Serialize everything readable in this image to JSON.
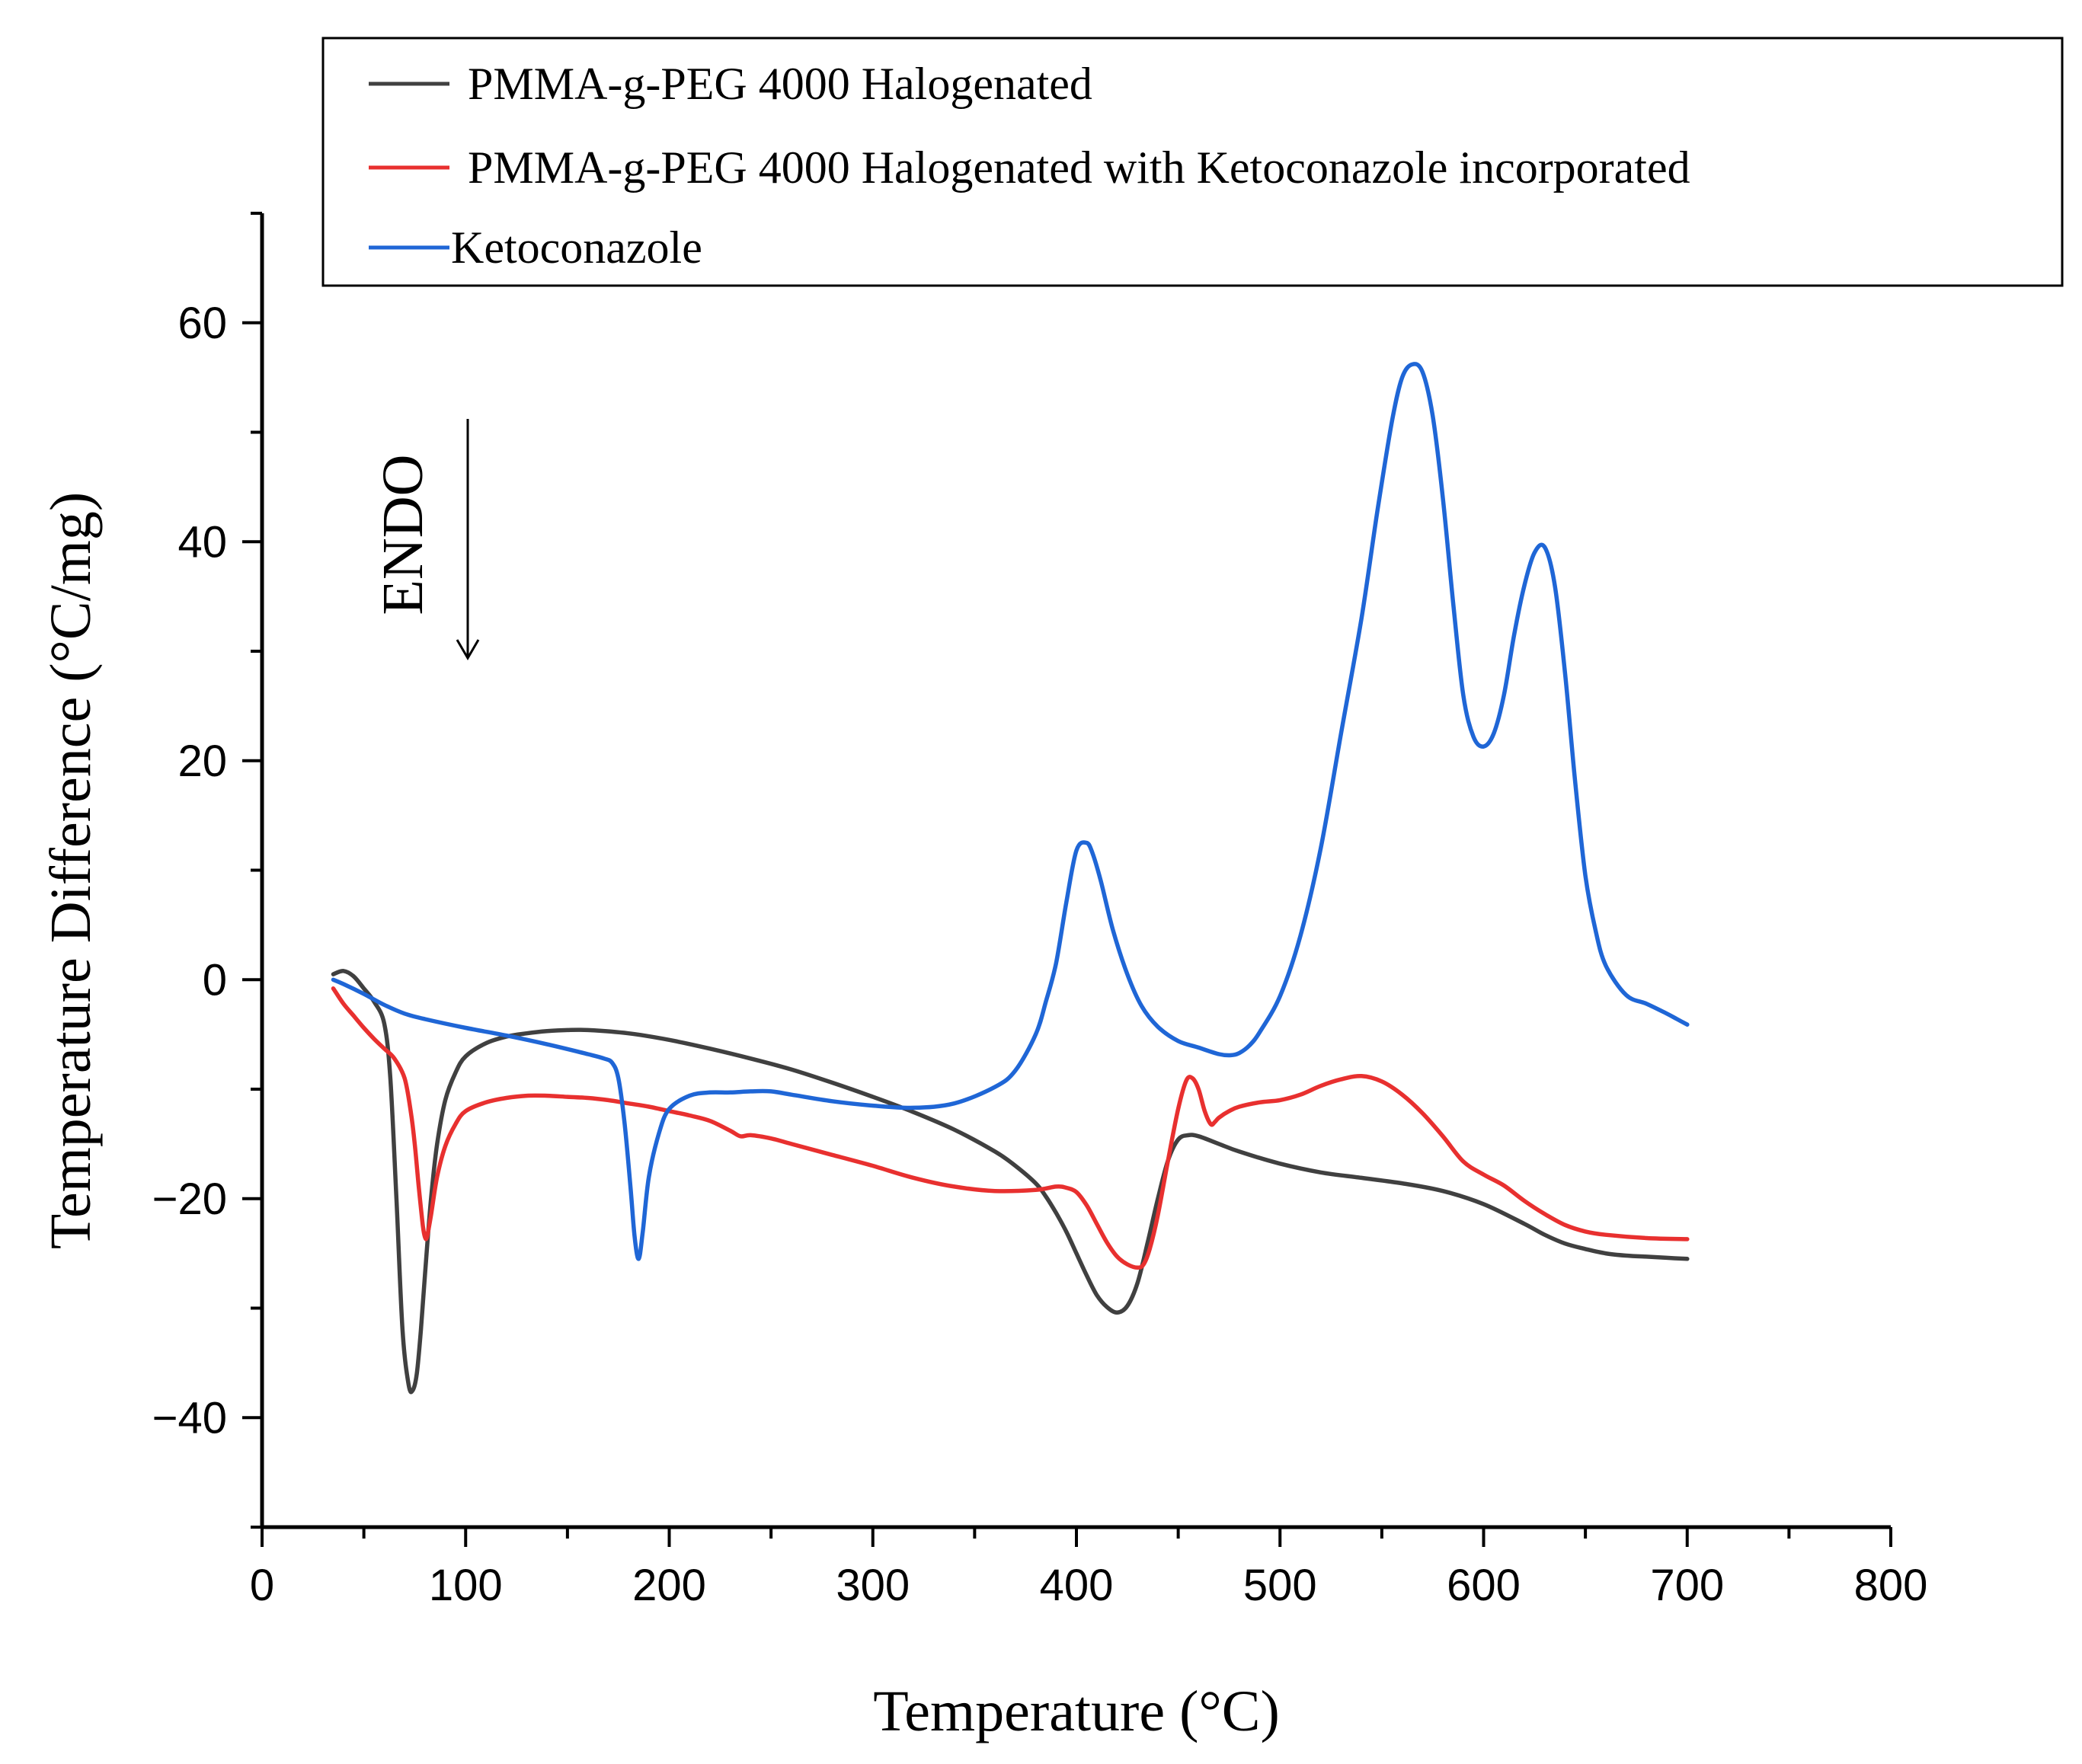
{
  "chart_data": {
    "type": "line",
    "title": "",
    "xlabel": "Temperature (°C)",
    "ylabel": "Temperature Difference (°C/mg)",
    "xlim": [
      0,
      800
    ],
    "ylim": [
      -50,
      70
    ],
    "xticks": [
      0,
      100,
      200,
      300,
      400,
      500,
      600,
      700,
      800
    ],
    "yticks": [
      -40,
      -20,
      0,
      20,
      40,
      60
    ],
    "legend_position": "top",
    "annotation": {
      "text": "ENDO",
      "arrow": "down"
    },
    "series": [
      {
        "name": "PMMA-g-PEG 4000 Halogenated",
        "color": "#404040",
        "x": [
          35,
          40,
          45,
          50,
          55,
          60,
          63,
          66,
          69,
          72,
          74,
          76,
          78,
          80,
          83,
          86,
          90,
          95,
          100,
          110,
          120,
          130,
          140,
          150,
          160,
          180,
          200,
          220,
          240,
          260,
          280,
          300,
          320,
          340,
          360,
          370,
          380,
          385,
          390,
          395,
          400,
          405,
          410,
          415,
          420,
          425,
          430,
          435,
          440,
          445,
          450,
          455,
          460,
          470,
          480,
          500,
          520,
          540,
          560,
          580,
          600,
          620,
          630,
          640,
          650,
          660,
          670,
          680,
          690,
          700
        ],
        "y": [
          0.5,
          0.8,
          0.3,
          -0.8,
          -2,
          -4,
          -9,
          -20,
          -32,
          -37,
          -37.5,
          -36,
          -32,
          -27,
          -20,
          -15,
          -11,
          -8.5,
          -7,
          -5.8,
          -5.2,
          -4.9,
          -4.7,
          -4.6,
          -4.6,
          -4.9,
          -5.5,
          -6.3,
          -7.2,
          -8.2,
          -9.4,
          -10.7,
          -12.1,
          -13.7,
          -15.7,
          -17,
          -18.6,
          -19.8,
          -21.3,
          -23,
          -25,
          -27,
          -28.8,
          -29.9,
          -30.4,
          -29.8,
          -27.7,
          -24,
          -20,
          -16.5,
          -14.6,
          -14.2,
          -14.3,
          -15,
          -15.7,
          -16.8,
          -17.6,
          -18.1,
          -18.6,
          -19.3,
          -20.5,
          -22.3,
          -23.3,
          -24.1,
          -24.6,
          -25,
          -25.2,
          -25.3,
          -25.4,
          -25.5
        ]
      },
      {
        "name": "PMMA-g-PEG 4000 Halogenated with Ketoconazole incorporated",
        "color": "#e8302f",
        "x": [
          35,
          40,
          45,
          50,
          55,
          60,
          65,
          70,
          73,
          75,
          77,
          79,
          80,
          81,
          83,
          86,
          90,
          95,
          100,
          110,
          120,
          130,
          140,
          150,
          160,
          170,
          180,
          190,
          200,
          210,
          220,
          230,
          235,
          240,
          250,
          260,
          280,
          300,
          320,
          340,
          360,
          380,
          390,
          395,
          400,
          405,
          410,
          415,
          420,
          425,
          430,
          433,
          436,
          440,
          445,
          450,
          454,
          457,
          460,
          463,
          466,
          468,
          470,
          475,
          480,
          490,
          500,
          510,
          520,
          530,
          540,
          550,
          560,
          570,
          580,
          590,
          600,
          610,
          620,
          630,
          640,
          650,
          660,
          680,
          700
        ],
        "y": [
          -0.8,
          -2.2,
          -3.3,
          -4.4,
          -5.4,
          -6.3,
          -7.2,
          -9,
          -12,
          -15,
          -19,
          -22.5,
          -23.5,
          -23.5,
          -21.5,
          -18,
          -15.2,
          -13.2,
          -12,
          -11.2,
          -10.8,
          -10.6,
          -10.6,
          -10.7,
          -10.8,
          -11,
          -11.3,
          -11.6,
          -12,
          -12.4,
          -12.9,
          -13.8,
          -14.3,
          -14.2,
          -14.5,
          -15,
          -16,
          -17,
          -18.1,
          -18.9,
          -19.3,
          -19.2,
          -18.9,
          -19,
          -19.4,
          -20.6,
          -22.3,
          -24,
          -25.3,
          -26,
          -26.3,
          -26,
          -24.6,
          -21.5,
          -16.5,
          -11.8,
          -9.2,
          -9,
          -10,
          -12,
          -13.2,
          -13,
          -12.6,
          -12,
          -11.6,
          -11.2,
          -11,
          -10.5,
          -9.7,
          -9.1,
          -8.8,
          -9.3,
          -10.5,
          -12.2,
          -14.3,
          -16.6,
          -17.8,
          -18.8,
          -20.2,
          -21.4,
          -22.4,
          -23,
          -23.3,
          -23.6,
          -23.7
        ]
      },
      {
        "name": "Ketoconazole",
        "color": "#1f66d6",
        "x": [
          35,
          40,
          50,
          60,
          70,
          80,
          100,
          120,
          140,
          160,
          168,
          172,
          175,
          178,
          181,
          183,
          185,
          187,
          190,
          195,
          200,
          210,
          220,
          230,
          240,
          250,
          260,
          280,
          300,
          320,
          340,
          360,
          370,
          380,
          385,
          390,
          395,
          400,
          405,
          408,
          412,
          418,
          425,
          432,
          440,
          450,
          460,
          470,
          476,
          480,
          485,
          490,
          500,
          510,
          520,
          530,
          540,
          548,
          555,
          560,
          565,
          570,
          575,
          580,
          585,
          590,
          595,
          600,
          605,
          610,
          615,
          620,
          625,
          630,
          635,
          640,
          645,
          650,
          655,
          660,
          670,
          680,
          690,
          695,
          700
        ],
        "y": [
          0,
          -0.4,
          -1.3,
          -2.3,
          -3.1,
          -3.6,
          -4.4,
          -5.1,
          -5.9,
          -6.8,
          -7.2,
          -7.6,
          -9,
          -13,
          -19,
          -23.5,
          -25.5,
          -23,
          -18,
          -14,
          -11.8,
          -10.6,
          -10.3,
          -10.3,
          -10.2,
          -10.2,
          -10.5,
          -11.1,
          -11.5,
          -11.7,
          -11.3,
          -9.8,
          -8.3,
          -5,
          -2,
          1.5,
          7,
          11.8,
          12.5,
          11.5,
          9,
          4.5,
          0.5,
          -2.4,
          -4.3,
          -5.6,
          -6.2,
          -6.8,
          -6.9,
          -6.7,
          -6,
          -4.8,
          -1.5,
          4,
          12,
          22.5,
          33,
          43,
          51,
          55,
          56.2,
          55.5,
          51.5,
          44,
          34.5,
          26,
          22.2,
          21.3,
          22.5,
          26,
          31.5,
          36,
          39,
          39.5,
          36,
          28,
          18,
          9.5,
          4.5,
          1.3,
          -1.4,
          -2.2,
          -3.1,
          -3.6,
          -4.1
        ]
      }
    ]
  }
}
